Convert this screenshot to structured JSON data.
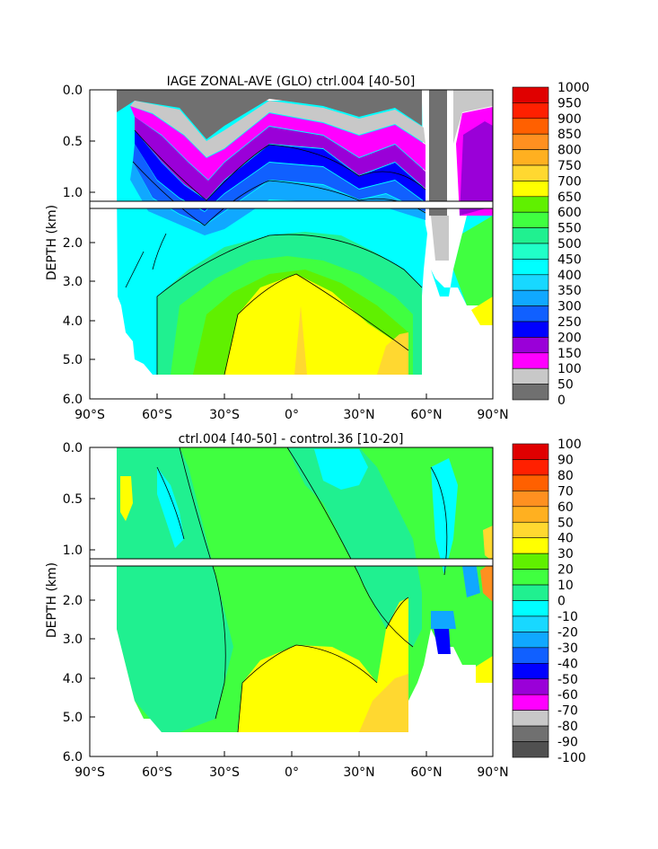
{
  "chart_data": [
    {
      "type": "heatmap",
      "title": "IAGE ZONAL-AVE (GLO) ctrl.004 [40-50]",
      "ylabel": "DEPTH (km)",
      "xlim": [
        -90,
        90
      ],
      "ylim": [
        6.0,
        0.0
      ],
      "x_ticks": [
        "90°S",
        "60°S",
        "30°S",
        "0°",
        "30°N",
        "60°N",
        "90°N"
      ],
      "y_ticks_upper": [
        "0.0",
        "0.5",
        "1.0"
      ],
      "y_ticks_lower": [
        "2.0",
        "3.0",
        "4.0",
        "5.0",
        "6.0"
      ],
      "colorbar_levels": [
        "0",
        "50",
        "100",
        "150",
        "200",
        "250",
        "300",
        "350",
        "400",
        "450",
        "500",
        "550",
        "600",
        "650",
        "700",
        "750",
        "800",
        "850",
        "900",
        "950",
        "1000"
      ],
      "colorbar_colors": [
        "#707070",
        "#c8c8c8",
        "#ff00ff",
        "#9a00d8",
        "#0000ff",
        "#1060ff",
        "#10a8ff",
        "#18d8ff",
        "#00ffff",
        "#20ffc8",
        "#20f090",
        "#40ff40",
        "#60f000",
        "#ffff00",
        "#ffd830",
        "#ffb020",
        "#ff9020",
        "#ff6000",
        "#ff2000",
        "#e00000"
      ]
    },
    {
      "type": "heatmap",
      "title": "ctrl.004 [40-50] - control.36 [10-20]",
      "ylabel": "DEPTH (km)",
      "xlim": [
        -90,
        90
      ],
      "ylim": [
        6.0,
        0.0
      ],
      "x_ticks": [
        "90°S",
        "60°S",
        "30°S",
        "0°",
        "30°N",
        "60°N",
        "90°N"
      ],
      "y_ticks_upper": [
        "0.0",
        "0.5",
        "1.0"
      ],
      "y_ticks_lower": [
        "2.0",
        "3.0",
        "4.0",
        "5.0",
        "6.0"
      ],
      "colorbar_levels": [
        "100",
        "90",
        "80",
        "70",
        "60",
        "50",
        "40",
        "30",
        "20",
        "10",
        "0",
        "-10",
        "-20",
        "-30",
        "-40",
        "-50",
        "-60",
        "-70",
        "-80",
        "-90",
        "-100"
      ],
      "colorbar_colors": [
        "#e00000",
        "#ff2000",
        "#ff6000",
        "#ff9020",
        "#ffb020",
        "#ffd830",
        "#ffff00",
        "#60f000",
        "#40ff40",
        "#20f090",
        "#00ffff",
        "#18d8ff",
        "#10a8ff",
        "#1060ff",
        "#0000ff",
        "#9a00d8",
        "#ff00ff",
        "#c8c8c8",
        "#707070",
        "#505050"
      ]
    }
  ]
}
